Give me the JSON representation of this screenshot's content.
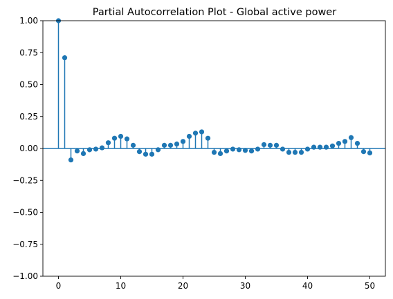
{
  "chart_data": {
    "type": "scatter",
    "title": "Partial Autocorrelation Plot - Global active power",
    "xlabel": "",
    "ylabel": "",
    "xlim": [
      -2.5,
      52.5
    ],
    "ylim": [
      -1.0,
      1.0
    ],
    "xticks": [
      0,
      10,
      20,
      30,
      40,
      50
    ],
    "xtick_labels": [
      "0",
      "10",
      "20",
      "30",
      "40",
      "50"
    ],
    "yticks": [
      -1.0,
      -0.75,
      -0.5,
      -0.25,
      0.0,
      0.25,
      0.5,
      0.75,
      1.0
    ],
    "ytick_labels": [
      "−1.00",
      "−0.75",
      "−0.50",
      "−0.25",
      "0.00",
      "0.25",
      "0.50",
      "0.75",
      "1.00"
    ],
    "grid": false,
    "legend": "none",
    "color": "#1f77b4",
    "series": [
      {
        "x": [
          0,
          1,
          2,
          3,
          4,
          5,
          6,
          7,
          8,
          9,
          10,
          11,
          12,
          13,
          14,
          15,
          16,
          17,
          18,
          19,
          20,
          21,
          22,
          23,
          24,
          25,
          26,
          27,
          28,
          29,
          30,
          31,
          32,
          33,
          34,
          35,
          36,
          37,
          38,
          39,
          40,
          41,
          42,
          43,
          44,
          45,
          46,
          47,
          48,
          49,
          50
        ],
        "values": [
          1.0,
          0.71,
          -0.09,
          -0.02,
          -0.04,
          -0.01,
          -0.005,
          0.005,
          0.045,
          0.08,
          0.095,
          0.075,
          0.025,
          -0.025,
          -0.045,
          -0.045,
          -0.01,
          0.025,
          0.025,
          0.035,
          0.055,
          0.095,
          0.12,
          0.13,
          0.08,
          -0.03,
          -0.04,
          -0.02,
          -0.005,
          -0.01,
          -0.015,
          -0.02,
          -0.005,
          0.03,
          0.025,
          0.025,
          -0.005,
          -0.03,
          -0.03,
          -0.03,
          -0.005,
          0.01,
          0.01,
          0.01,
          0.02,
          0.04,
          0.055,
          0.085,
          0.04,
          -0.025,
          -0.035
        ]
      }
    ]
  }
}
